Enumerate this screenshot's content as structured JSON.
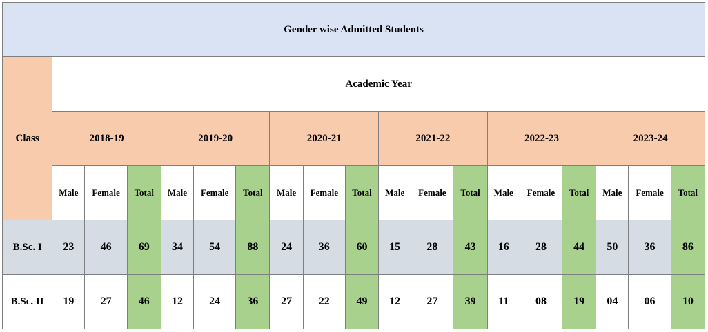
{
  "table": {
    "title": "Gender wise Admitted Students",
    "class_header": "Class",
    "academic_year_header": "Academic Year",
    "years": [
      "2018-19",
      "2019-20",
      "2020-21",
      "2021-22",
      "2022-23",
      "2023-24"
    ],
    "sub_headers": {
      "male": "Male",
      "female": "Female",
      "total": "Total"
    },
    "colors": {
      "title_bg": "#dae3f3",
      "header_bg": "#f8cbad",
      "total_bg": "#a9d18e",
      "row1_bg": "#d6dce4"
    },
    "rows": [
      {
        "label": "B.Sc. I",
        "values": [
          [
            "23",
            "46",
            "69"
          ],
          [
            "34",
            "54",
            "88"
          ],
          [
            "24",
            "36",
            "60"
          ],
          [
            "15",
            "28",
            "43"
          ],
          [
            "16",
            "28",
            "44"
          ],
          [
            "50",
            "36",
            "86"
          ]
        ]
      },
      {
        "label": "B.Sc. II",
        "values": [
          [
            "19",
            "27",
            "46"
          ],
          [
            "12",
            "24",
            "36"
          ],
          [
            "27",
            "22",
            "49"
          ],
          [
            "12",
            "27",
            "39"
          ],
          [
            "11",
            "08",
            "19"
          ],
          [
            "04",
            "06",
            "10"
          ]
        ]
      }
    ]
  }
}
